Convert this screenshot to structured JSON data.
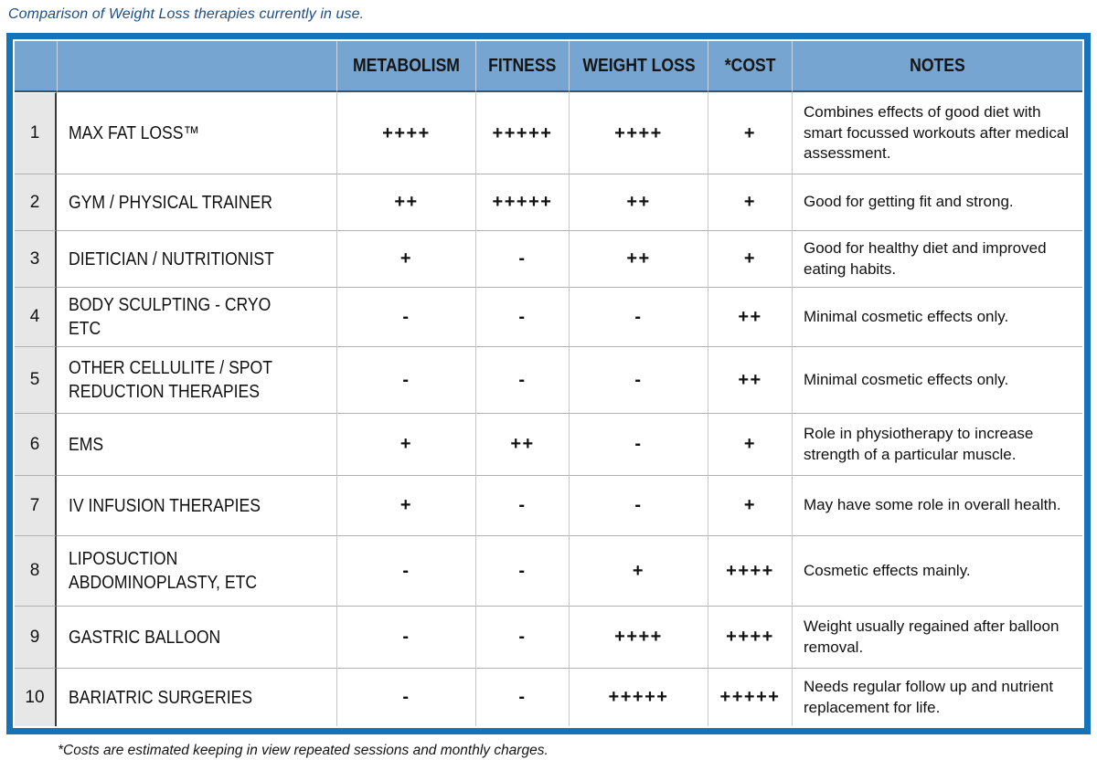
{
  "title": "Comparison of Weight Loss therapies currently in use.",
  "footnote": "*Costs are estimated keeping in view repeated sessions and monthly charges.",
  "colors": {
    "frame_border_blue": "#1573b9",
    "header_fill_blue": "#76a5d2",
    "row_number_gray": "#e7e7e7",
    "title_text_blue": "#1d4e89"
  },
  "table": {
    "headers": {
      "metabolism": "METABOLISM",
      "fitness": "FITNESS",
      "weight_loss": "WEIGHT LOSS",
      "cost": "*COST",
      "notes": "NOTES"
    },
    "rows": [
      {
        "num": "1",
        "name": "MAX FAT LOSS™",
        "metabolism": "++++",
        "fitness": "+++++",
        "weight_loss": "++++",
        "cost": "+",
        "notes": "Combines effects of good diet with smart focussed workouts after medical assessment."
      },
      {
        "num": "2",
        "name": "GYM / PHYSICAL TRAINER",
        "metabolism": "++",
        "fitness": "+++++",
        "weight_loss": "++",
        "cost": "+",
        "notes": "Good for getting fit and strong."
      },
      {
        "num": "3",
        "name": "DIETICIAN / NUTRITIONIST",
        "metabolism": "+",
        "fitness": "-",
        "weight_loss": "++",
        "cost": "+",
        "notes": "Good for healthy diet and improved eating habits."
      },
      {
        "num": "4",
        "name": "BODY SCULPTING - CRYO ETC",
        "metabolism": "-",
        "fitness": "-",
        "weight_loss": "-",
        "cost": "++",
        "notes": "Minimal cosmetic effects only."
      },
      {
        "num": "5",
        "name": "OTHER CELLULITE / SPOT\nREDUCTION THERAPIES",
        "metabolism": "-",
        "fitness": "-",
        "weight_loss": "-",
        "cost": "++",
        "notes": "Minimal cosmetic effects only."
      },
      {
        "num": "6",
        "name": "EMS",
        "metabolism": "+",
        "fitness": "++",
        "weight_loss": "-",
        "cost": "+",
        "notes": "Role in physiotherapy to increase strength of a particular muscle."
      },
      {
        "num": "7",
        "name": "IV INFUSION THERAPIES",
        "metabolism": "+",
        "fitness": "-",
        "weight_loss": "-",
        "cost": "+",
        "notes": "May have some role in overall health."
      },
      {
        "num": "8",
        "name": "LIPOSUCTION\nABDOMINOPLASTY, ETC",
        "metabolism": "-",
        "fitness": "-",
        "weight_loss": "+",
        "cost": "++++",
        "notes": "Cosmetic effects mainly."
      },
      {
        "num": "9",
        "name": "GASTRIC BALLOON",
        "metabolism": "-",
        "fitness": "-",
        "weight_loss": "++++",
        "cost": "++++",
        "notes": "Weight usually regained after balloon removal."
      },
      {
        "num": "10",
        "name": "BARIATRIC SURGERIES",
        "metabolism": "-",
        "fitness": "-",
        "weight_loss": "+++++",
        "cost": "+++++",
        "notes": "Needs regular follow up and nutrient replacement for life."
      }
    ]
  }
}
